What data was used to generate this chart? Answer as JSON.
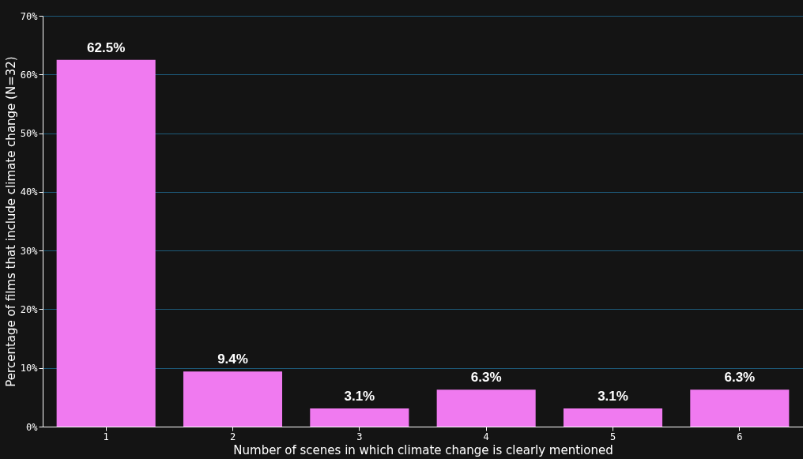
{
  "chart_data": {
    "type": "bar",
    "xlabel": "Number of scenes in which climate change is clearly  mentioned",
    "ylabel": "Percentage of films that include climate change (N=32)",
    "categories": [
      "1",
      "2",
      "3",
      "4",
      "5",
      "6"
    ],
    "values": [
      62.5,
      9.4,
      3.1,
      6.3,
      3.1,
      6.3
    ],
    "value_labels": [
      "62.5%",
      "9.4%",
      "3.1%",
      "6.3%",
      "3.1%",
      "6.3%"
    ],
    "color": "#f07af0",
    "ylim": [
      0,
      70
    ],
    "yticks": [
      {
        "value": 0,
        "label": "0%"
      },
      {
        "value": 10,
        "label": "10%"
      },
      {
        "value": 20,
        "label": "20%"
      },
      {
        "value": 30,
        "label": "30%"
      },
      {
        "value": 40,
        "label": "40%"
      },
      {
        "value": 50,
        "label": "50%"
      },
      {
        "value": 60,
        "label": "60%"
      },
      {
        "value": 70,
        "label": "70%"
      }
    ],
    "grid": "y"
  }
}
